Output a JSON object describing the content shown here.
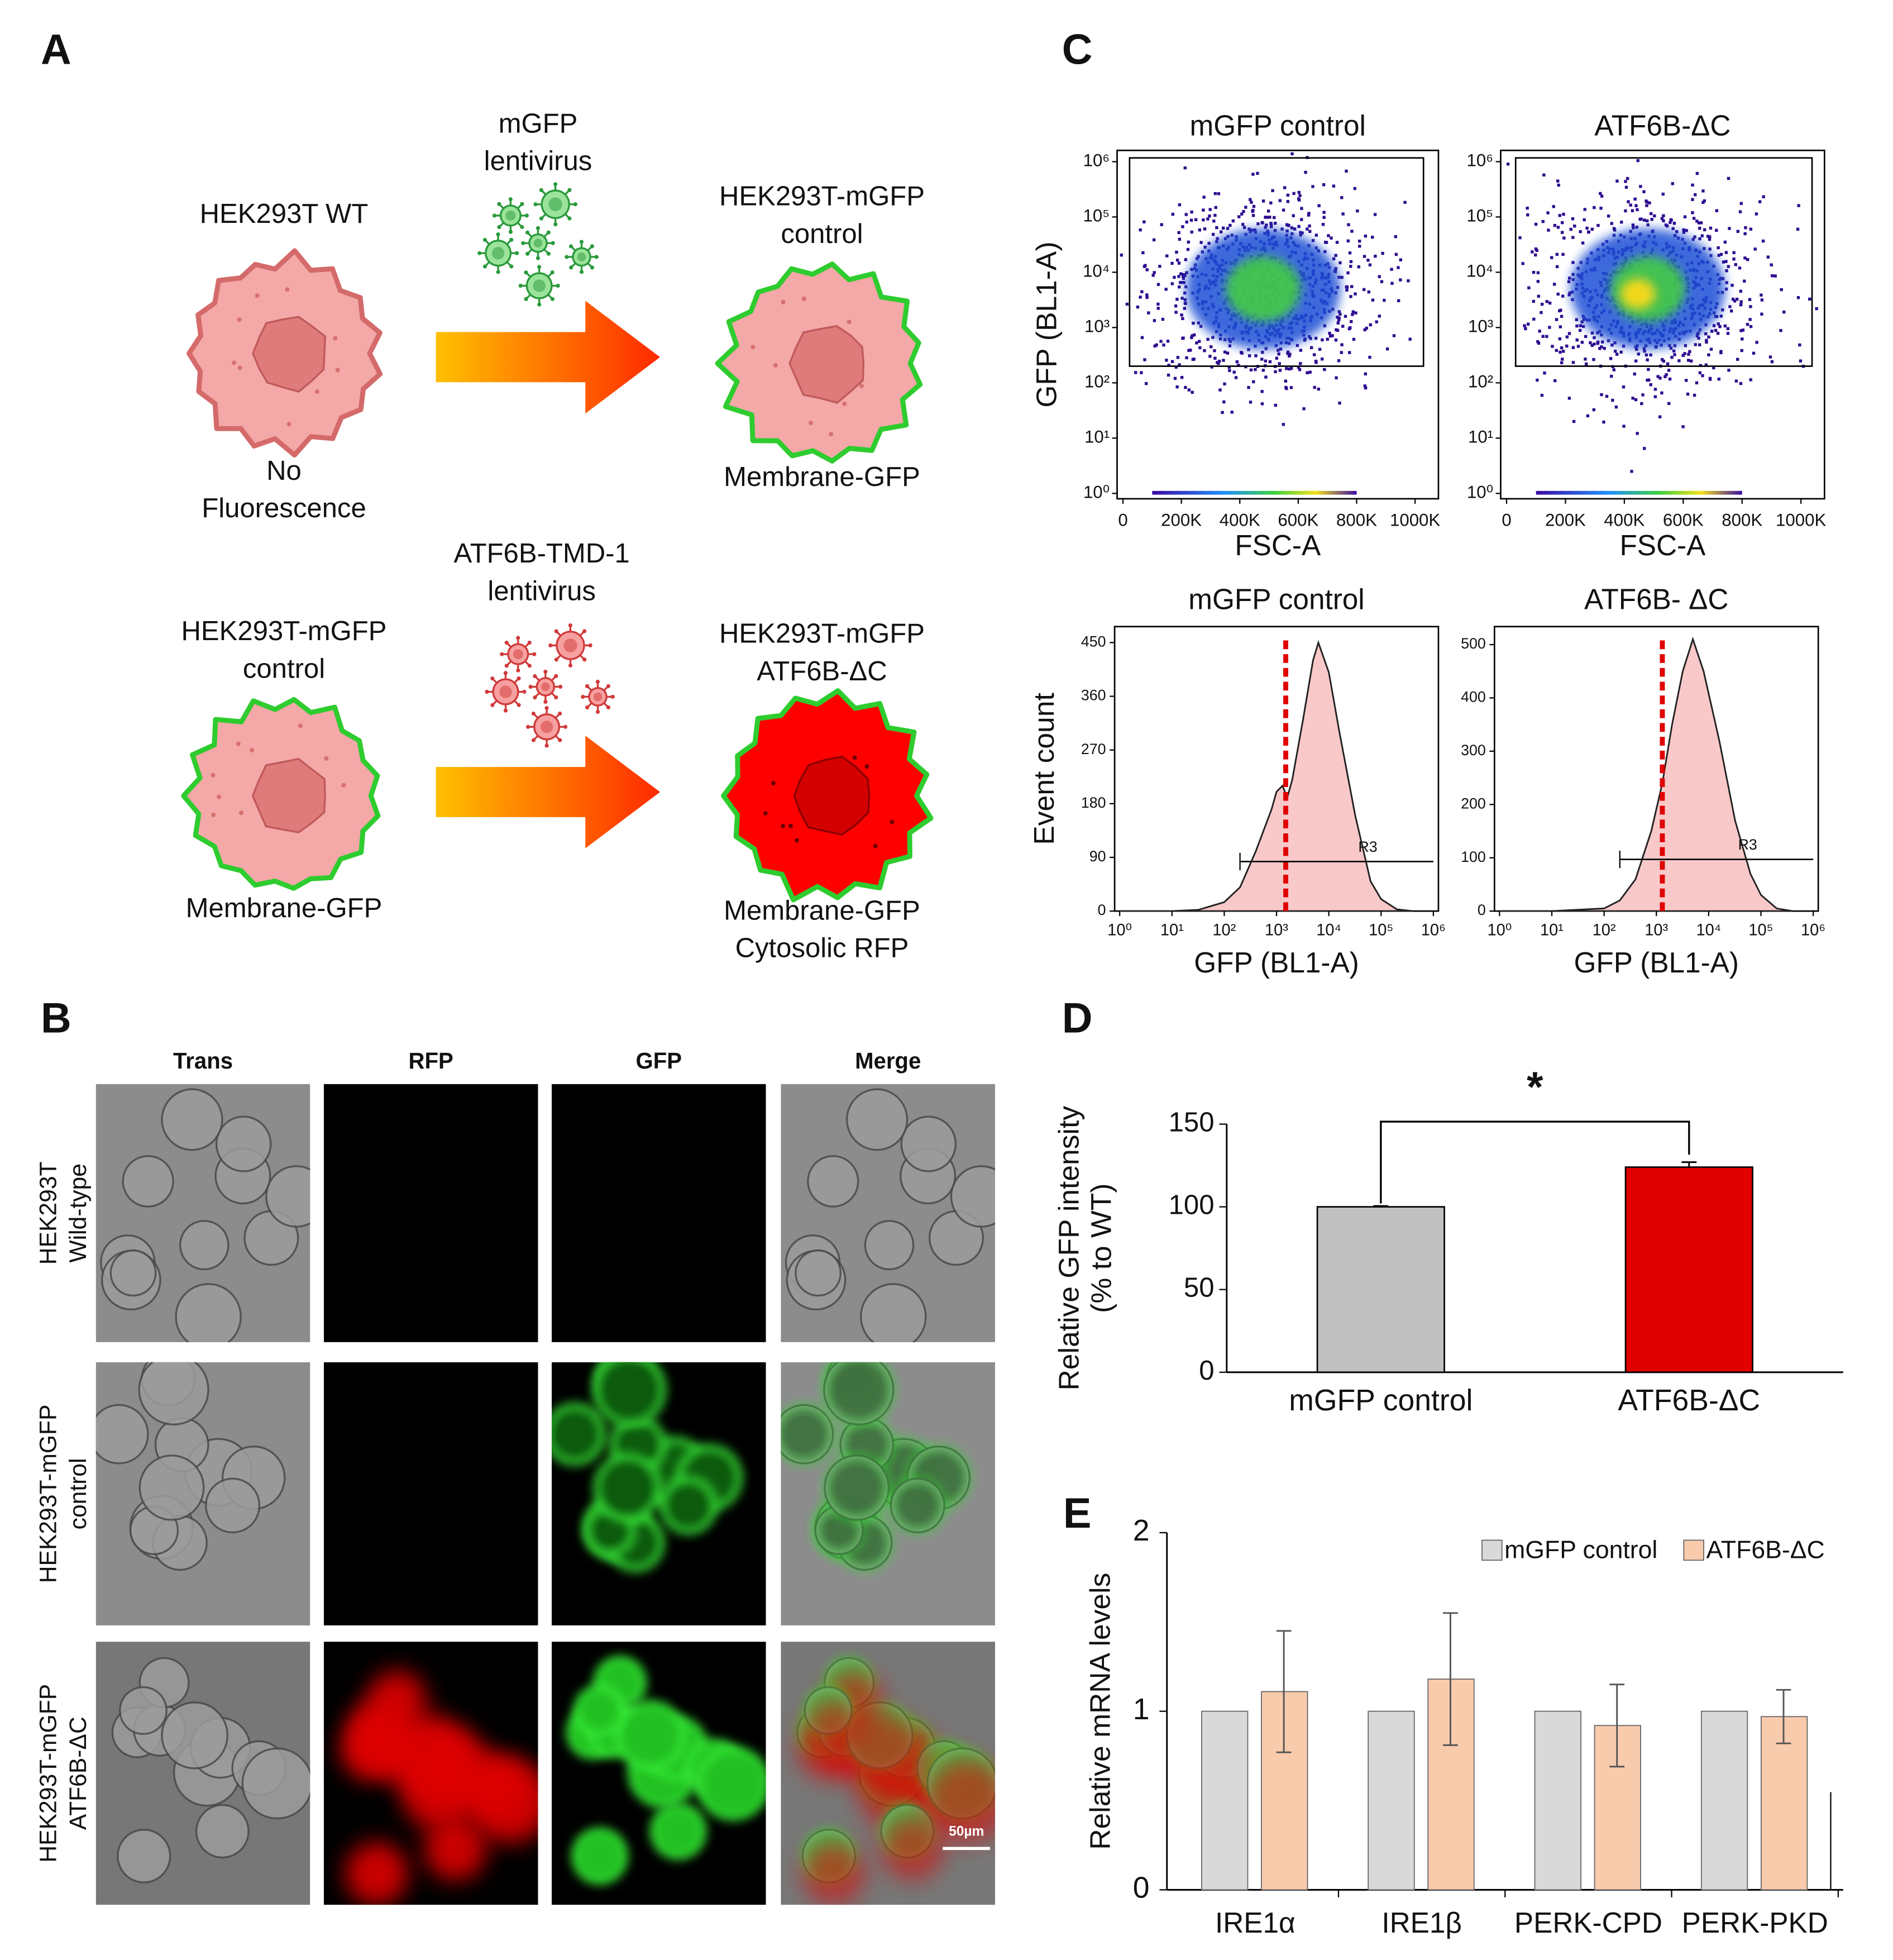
{
  "panel_labels": [
    "A",
    "B",
    "C",
    "D",
    "E"
  ],
  "panel_a": {
    "top_left": [
      "HEK293T WT"
    ],
    "top_left_caption": [
      "No",
      "Fluorescence"
    ],
    "top_virus": [
      "mGFP",
      "lentivirus"
    ],
    "top_right": [
      "HEK293T-mGFP",
      "control"
    ],
    "top_right_caption": [
      "Membrane-GFP"
    ],
    "bottom_left": [
      "HEK293T-mGFP",
      "control"
    ],
    "bottom_left_caption": [
      "Membrane-GFP"
    ],
    "bottom_virus": [
      "ATF6B-TMD-1",
      "lentivirus"
    ],
    "bottom_right": [
      "HEK293T-mGFP",
      "ATF6B-ΔC"
    ],
    "bottom_right_caption": [
      "Membrane-GFP",
      "Cytosolic RFP"
    ]
  },
  "panel_b": {
    "columns": [
      "Trans",
      "RFP",
      "GFP",
      "Merge"
    ],
    "rows": [
      [
        "HEK293T",
        "Wild-type"
      ],
      [
        "HEK293T-mGFP",
        "control"
      ],
      [
        "HEK293T-mGFP",
        "ATF6B-ΔC"
      ]
    ],
    "scale_bar": "50µm"
  },
  "chart_data": [
    {
      "type": "density",
      "title": "mGFP control",
      "xlabel": "FSC-A",
      "ylabel": "GFP (BL1-A)",
      "xlim": [
        -20000,
        1080000
      ],
      "xticks": [
        0,
        {
          "value": 200000,
          "label": "200K"
        },
        {
          "value": 400000,
          "label": "400K"
        },
        {
          "value": 600000,
          "label": "600K"
        },
        {
          "value": 800000,
          "label": "800K"
        },
        {
          "value": 1000000,
          "label": "1000K"
        }
      ],
      "yscale": "log",
      "ylim": [
        0.8,
        1600000
      ],
      "yticks": [
        {
          "value": 1,
          "label": "10⁰"
        },
        {
          "value": 10,
          "label": "10¹"
        },
        {
          "value": 100,
          "label": "10²"
        },
        {
          "value": 1000,
          "label": "10³"
        },
        {
          "value": 10000,
          "label": "10⁴"
        },
        {
          "value": 100000,
          "label": "10⁵"
        },
        {
          "value": 1000000,
          "label": "10⁶"
        }
      ]
    },
    {
      "type": "density",
      "title": "ATF6B-ΔC",
      "xlabel": "FSC-A",
      "xlim": [
        -20000,
        1080000
      ],
      "xticks": [
        0,
        {
          "value": 200000,
          "label": "200K"
        },
        {
          "value": 400000,
          "label": "400K"
        },
        {
          "value": 600000,
          "label": "600K"
        },
        {
          "value": 800000,
          "label": "800K"
        },
        {
          "value": 1000000,
          "label": "1000K"
        }
      ],
      "yscale": "log",
      "ylim": [
        0.8,
        1600000
      ],
      "yticks": [
        {
          "value": 1,
          "label": "10⁰"
        },
        {
          "value": 10,
          "label": "10¹"
        },
        {
          "value": 100,
          "label": "10²"
        },
        {
          "value": 1000,
          "label": "10³"
        },
        {
          "value": 10000,
          "label": "10⁴"
        },
        {
          "value": 100000,
          "label": "10⁵"
        },
        {
          "value": 1000000,
          "label": "10⁶"
        }
      ]
    },
    {
      "type": "area",
      "title": "mGFP control",
      "xlabel": "GFP (BL1-A)",
      "ylabel": "Event count",
      "color": "#f9c9c9",
      "xscale": "log",
      "xlim": [
        0.8,
        1250000
      ],
      "xticks": [
        {
          "value": 1,
          "label": "10⁰"
        },
        {
          "value": 10,
          "label": "10¹"
        },
        {
          "value": 100,
          "label": "10²"
        },
        {
          "value": 1000,
          "label": "10³"
        },
        {
          "value": 10000,
          "label": "10⁴"
        },
        {
          "value": 100000,
          "label": "10⁵"
        },
        {
          "value": 1000000,
          "label": "10⁶"
        }
      ],
      "ylim": [
        0,
        460
      ],
      "yticks": [
        0,
        90,
        180,
        270,
        360,
        450
      ],
      "x": [
        1,
        10,
        32,
        100,
        200,
        400,
        800,
        1000,
        1300,
        1600,
        2000,
        3200,
        5000,
        6300,
        10000,
        16000,
        32000,
        63000,
        100000,
        200000,
        400000
      ],
      "values": [
        0,
        0,
        2,
        15,
        40,
        100,
        170,
        200,
        210,
        190,
        220,
        320,
        420,
        450,
        400,
        300,
        160,
        50,
        20,
        3,
        0
      ],
      "threshold": 1500,
      "gate_label": "R3",
      "gate_range": [
        200,
        1000000
      ],
      "gate_level": 83
    },
    {
      "type": "area",
      "title": "ATF6B- ΔC",
      "xlabel": "GFP (BL1-A)",
      "color": "#f9c9c9",
      "xscale": "log",
      "xlim": [
        0.8,
        1250000
      ],
      "xticks": [
        {
          "value": 1,
          "label": "10⁰"
        },
        {
          "value": 10,
          "label": "10¹"
        },
        {
          "value": 100,
          "label": "10²"
        },
        {
          "value": 1000,
          "label": "10³"
        },
        {
          "value": 10000,
          "label": "10⁴"
        },
        {
          "value": 100000,
          "label": "10⁵"
        },
        {
          "value": 1000000,
          "label": "10⁶"
        }
      ],
      "ylim": [
        0,
        515
      ],
      "yticks": [
        0,
        100,
        200,
        300,
        400,
        500
      ],
      "x": [
        1,
        10,
        100,
        200,
        400,
        800,
        1300,
        2000,
        3200,
        5000,
        8000,
        16000,
        32000,
        63000,
        100000,
        200000,
        400000
      ],
      "values": [
        0,
        0,
        5,
        20,
        60,
        150,
        240,
        350,
        450,
        510,
        450,
        320,
        170,
        70,
        30,
        5,
        0
      ],
      "threshold": 1300,
      "gate_label": "R3",
      "gate_range": [
        200,
        1000000
      ],
      "gate_level": 97
    },
    {
      "type": "bar",
      "ylabel": [
        "Relative GFP intensity",
        "(% to WT)"
      ],
      "annotation": "*",
      "categories": [
        "mGFP control",
        "ATF6B-ΔC"
      ],
      "values": [
        100,
        124
      ],
      "errors": [
        0.5,
        3
      ],
      "colors": [
        "#c0c0c0",
        "#e00000"
      ],
      "ylim": [
        0,
        150
      ],
      "yticks": [
        0,
        50,
        100,
        150
      ]
    },
    {
      "type": "grouped_bar",
      "ylabel": "Relative mRNA levels",
      "categories": [
        "IRE1α",
        "IRE1β",
        "PERK-CPD",
        "PERK-PKD"
      ],
      "series": [
        {
          "name": "mGFP control",
          "color": "#d9d9d9",
          "values": [
            1,
            1,
            1,
            1
          ],
          "errors": [
            0,
            0,
            0,
            0
          ]
        },
        {
          "name": "ATF6B-ΔC",
          "color": "#f8cbad",
          "values": [
            1.11,
            1.18,
            0.92,
            0.97
          ],
          "errors": [
            0.34,
            0.37,
            0.23,
            0.15
          ]
        }
      ],
      "ylim": [
        0,
        2
      ],
      "yticks": [
        0,
        1,
        2
      ]
    }
  ]
}
